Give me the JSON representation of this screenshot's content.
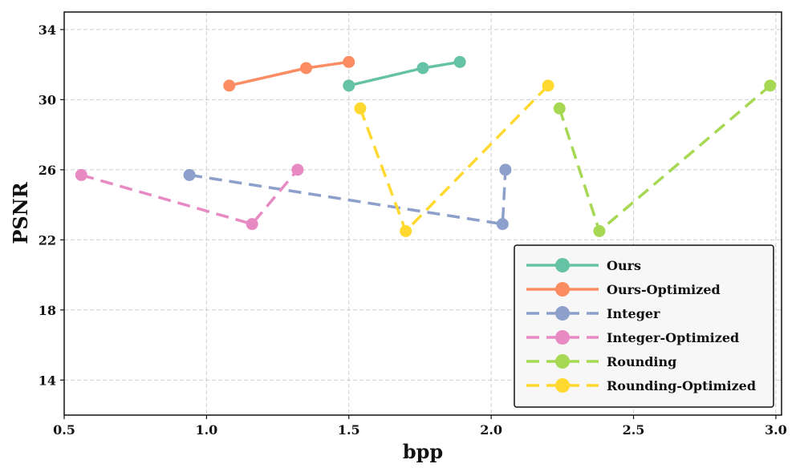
{
  "chart_data": {
    "type": "line",
    "title": "",
    "xlabel": "bpp",
    "ylabel": "PSNR",
    "xlim": [
      0.5,
      3.02
    ],
    "ylim": [
      12,
      35
    ],
    "xticks": [
      0.5,
      1.0,
      1.5,
      2.0,
      2.5,
      3.0
    ],
    "xtick_labels": [
      "0.5",
      "1.0",
      "1.5",
      "2.0",
      "2.5",
      "3.0"
    ],
    "yticks": [
      14,
      18,
      22,
      26,
      30,
      34
    ],
    "ytick_labels": [
      "14",
      "18",
      "22",
      "26",
      "30",
      "34"
    ],
    "grid": true,
    "legend_position": "bottom-right",
    "series": [
      {
        "name": "Ours",
        "color": "#66c2a5",
        "dashed": false,
        "x": [
          1.5,
          1.76,
          1.89
        ],
        "y": [
          30.8,
          31.8,
          32.15
        ]
      },
      {
        "name": "Ours-Optimized",
        "color": "#fc8d62",
        "dashed": false,
        "x": [
          1.08,
          1.35,
          1.5
        ],
        "y": [
          30.8,
          31.8,
          32.15
        ]
      },
      {
        "name": "Integer",
        "color": "#8da0cb",
        "dashed": true,
        "x": [
          0.94,
          2.04,
          2.05
        ],
        "y": [
          25.7,
          22.9,
          26.0
        ]
      },
      {
        "name": "Integer-Optimized",
        "color": "#e78ac3",
        "dashed": true,
        "x": [
          0.56,
          1.16,
          1.32
        ],
        "y": [
          25.7,
          22.9,
          26.0
        ]
      },
      {
        "name": "Rounding",
        "color": "#a6d854",
        "dashed": true,
        "x": [
          2.24,
          2.38,
          2.98
        ],
        "y": [
          29.5,
          22.5,
          30.8
        ]
      },
      {
        "name": "Rounding-Optimized",
        "color": "#ffd92f",
        "dashed": true,
        "x": [
          1.54,
          1.7,
          2.2
        ],
        "y": [
          29.5,
          22.5,
          30.8
        ]
      }
    ]
  }
}
